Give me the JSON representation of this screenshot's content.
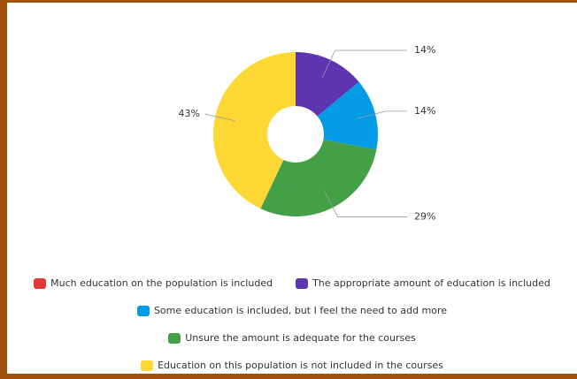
{
  "chart_data": {
    "type": "donut",
    "categories": [
      "Much education on the population is included",
      "The appropriate amount of education is included",
      "Some education is included, but I feel the need to add more",
      "Unsure the amount is adequate for the courses",
      "Education on this population is not included in the courses"
    ],
    "values": [
      0,
      14,
      14,
      29,
      43
    ],
    "value_labels": [
      null,
      "14%",
      "14%",
      "29%",
      "43%"
    ],
    "colors": [
      "#e53935",
      "#5e35b1",
      "#039be5",
      "#43a047",
      "#fdd835"
    ],
    "legend": "bottom"
  }
}
